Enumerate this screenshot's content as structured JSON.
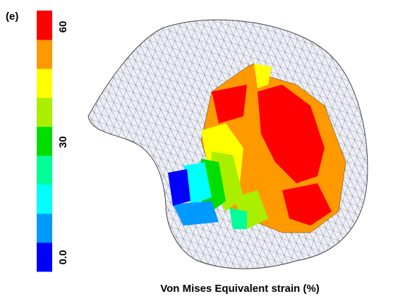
{
  "panel_label": "(e)",
  "colorbar": {
    "range": [
      0,
      60
    ],
    "ticks": [
      {
        "value": 0,
        "label": "0.0"
      },
      30,
      60
    ],
    "colors": [
      "#0000ff",
      "#0099ff",
      "#00ffff",
      "#00ff99",
      "#00dd00",
      "#aaee00",
      "#ffff00",
      "#ff9900",
      "#ff0000"
    ]
  },
  "caption": "Von Mises Equivalent strain (%)"
}
